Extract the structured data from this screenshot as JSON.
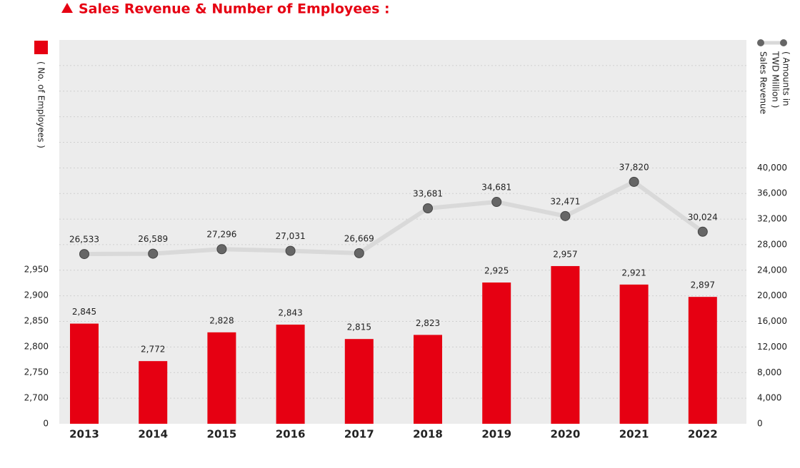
{
  "chart_data": {
    "type": "bar_line",
    "title": "Sales Revenue & Number of Employees :",
    "categories": [
      "2013",
      "2014",
      "2015",
      "2016",
      "2017",
      "2018",
      "2019",
      "2020",
      "2021",
      "2022"
    ],
    "series": [
      {
        "name": "( No. of Employees )",
        "type": "bar",
        "color": "#e60012",
        "values": [
          2845,
          2772,
          2828,
          2843,
          2815,
          2823,
          2925,
          2957,
          2921,
          2897
        ],
        "value_labels": [
          "2,845",
          "2,772",
          "2,828",
          "2,843",
          "2,815",
          "2,823",
          "2,925",
          "2,957",
          "2,921",
          "2,897"
        ]
      },
      {
        "name": "Sales Revenue",
        "type": "line",
        "axis": "y2",
        "color": "#d9d9d9",
        "marker_color": "#666666",
        "values": [
          26533,
          26589,
          27296,
          27031,
          26669,
          33681,
          34681,
          32471,
          37820,
          30024
        ],
        "value_labels": [
          "26,533",
          "26,589",
          "27,296",
          "27,031",
          "26,669",
          "33,681",
          "34,681",
          "32,471",
          "37,820",
          "30,024"
        ]
      }
    ],
    "y2label": [
      "( Amounts in",
      "TWD Million )"
    ],
    "ylim": [
      0,
      3400
    ],
    "y_scale": "broken",
    "yticks": [
      0,
      {
        "value": 2700,
        "label": "2,700"
      },
      {
        "value": 2750,
        "label": "2,750"
      },
      {
        "value": 2800,
        "label": "2,800"
      },
      {
        "value": 2850,
        "label": "2,850"
      },
      {
        "value": 2900,
        "label": "2,900"
      },
      {
        "value": 2950,
        "label": "2,950"
      }
    ],
    "y2lim": [
      0,
      60000
    ],
    "y2ticks": [
      0,
      {
        "value": 4000,
        "label": "4,000"
      },
      {
        "value": 8000,
        "label": "8,000"
      },
      {
        "value": 12000,
        "label": "12,000"
      },
      {
        "value": 16000,
        "label": "16,000"
      },
      {
        "value": 20000,
        "label": "20,000"
      },
      {
        "value": 24000,
        "label": "24,000"
      },
      {
        "value": 28000,
        "label": "28,000"
      },
      {
        "value": 32000,
        "label": "32,000"
      },
      {
        "value": 36000,
        "label": "36,000"
      },
      {
        "value": 40000,
        "label": "40,000"
      }
    ],
    "grid": true
  }
}
